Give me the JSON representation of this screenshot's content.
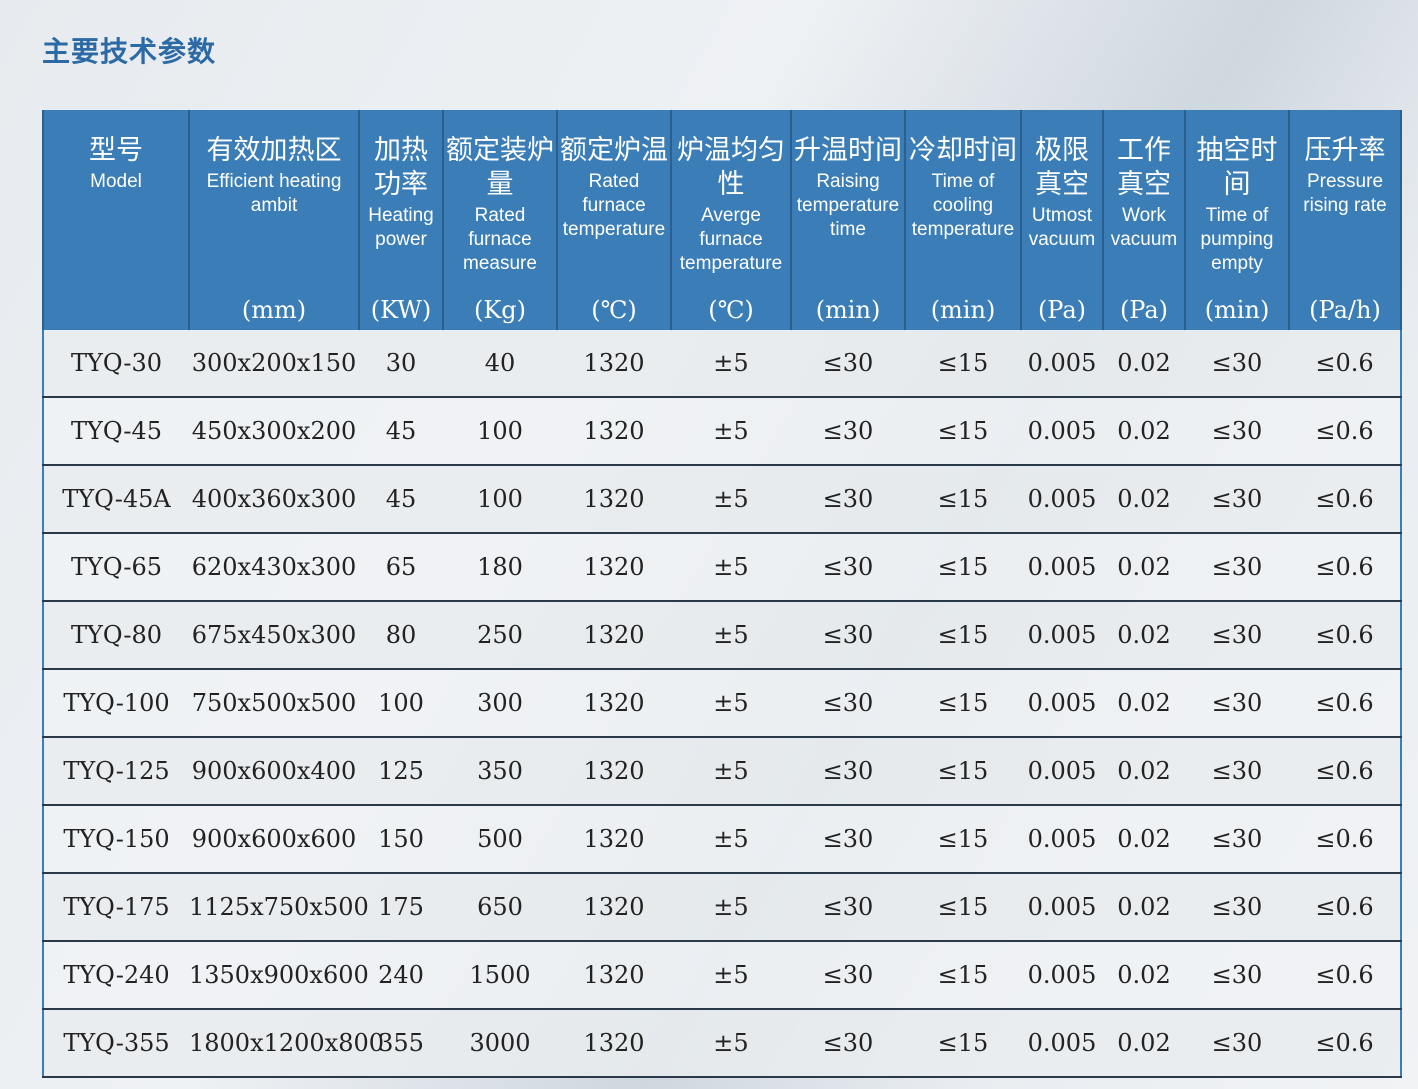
{
  "title": "主要技术参数",
  "columns": [
    {
      "cn": "型号",
      "en": "Model",
      "unit": ""
    },
    {
      "cn": "有效加热区",
      "en": "Efficient heating ambit",
      "unit": "(mm)"
    },
    {
      "cn": "加热功率",
      "en": "Heating power",
      "unit": "(KW)"
    },
    {
      "cn": "额定装炉量",
      "en": "Rated furnace measure",
      "unit": "(Kg)"
    },
    {
      "cn": "额定炉温",
      "en": "Rated furnace temperature",
      "unit": "(℃)"
    },
    {
      "cn": "炉温均匀性",
      "en": "Averge furnace temperature",
      "unit": "(℃)"
    },
    {
      "cn": "升温时间",
      "en": "Raising temperature time",
      "unit": "(min)"
    },
    {
      "cn": "冷却时间",
      "en": "Time of cooling temperature",
      "unit": "(min)"
    },
    {
      "cn": "极限真空",
      "en": "Utmost vacuum",
      "unit": "(Pa)"
    },
    {
      "cn": "工作真空",
      "en": "Work vacuum",
      "unit": "(Pa)"
    },
    {
      "cn": "抽空时间",
      "en": "Time of pumping empty",
      "unit": "(min)"
    },
    {
      "cn": "压升率",
      "en": "Pressure rising rate",
      "unit": "(Pa/h)"
    }
  ],
  "rows": [
    [
      "TYQ-30",
      "300x200x150",
      "30",
      "40",
      "1320",
      "±5",
      "≤30",
      "≤15",
      "0.005",
      "0.02",
      "≤30",
      "≤0.6"
    ],
    [
      "TYQ-45",
      "450x300x200",
      "45",
      "100",
      "1320",
      "±5",
      "≤30",
      "≤15",
      "0.005",
      "0.02",
      "≤30",
      "≤0.6"
    ],
    [
      "TYQ-45A",
      "400x360x300",
      "45",
      "100",
      "1320",
      "±5",
      "≤30",
      "≤15",
      "0.005",
      "0.02",
      "≤30",
      "≤0.6"
    ],
    [
      "TYQ-65",
      "620x430x300",
      "65",
      "180",
      "1320",
      "±5",
      "≤30",
      "≤15",
      "0.005",
      "0.02",
      "≤30",
      "≤0.6"
    ],
    [
      "TYQ-80",
      "675x450x300",
      "80",
      "250",
      "1320",
      "±5",
      "≤30",
      "≤15",
      "0.005",
      "0.02",
      "≤30",
      "≤0.6"
    ],
    [
      "TYQ-100",
      "750x500x500",
      "100",
      "300",
      "1320",
      "±5",
      "≤30",
      "≤15",
      "0.005",
      "0.02",
      "≤30",
      "≤0.6"
    ],
    [
      "TYQ-125",
      "900x600x400",
      "125",
      "350",
      "1320",
      "±5",
      "≤30",
      "≤15",
      "0.005",
      "0.02",
      "≤30",
      "≤0.6"
    ],
    [
      "TYQ-150",
      "900x600x600",
      "150",
      "500",
      "1320",
      "±5",
      "≤30",
      "≤15",
      "0.005",
      "0.02",
      "≤30",
      "≤0.6"
    ],
    [
      "TYQ-175",
      "1125x750x500",
      "175",
      "650",
      "1320",
      "±5",
      "≤30",
      "≤15",
      "0.005",
      "0.02",
      "≤30",
      "≤0.6"
    ],
    [
      "TYQ-240",
      "1350x900x600",
      "240",
      "1500",
      "1320",
      "±5",
      "≤30",
      "≤15",
      "0.005",
      "0.02",
      "≤30",
      "≤0.6"
    ],
    [
      "TYQ-355",
      "1800x1200x800",
      "355",
      "3000",
      "1320",
      "±5",
      "≤30",
      "≤15",
      "0.005",
      "0.02",
      "≤30",
      "≤0.6"
    ]
  ],
  "colors": {
    "header_bg": "#3a7db7",
    "title_color": "#2c6aa6"
  }
}
